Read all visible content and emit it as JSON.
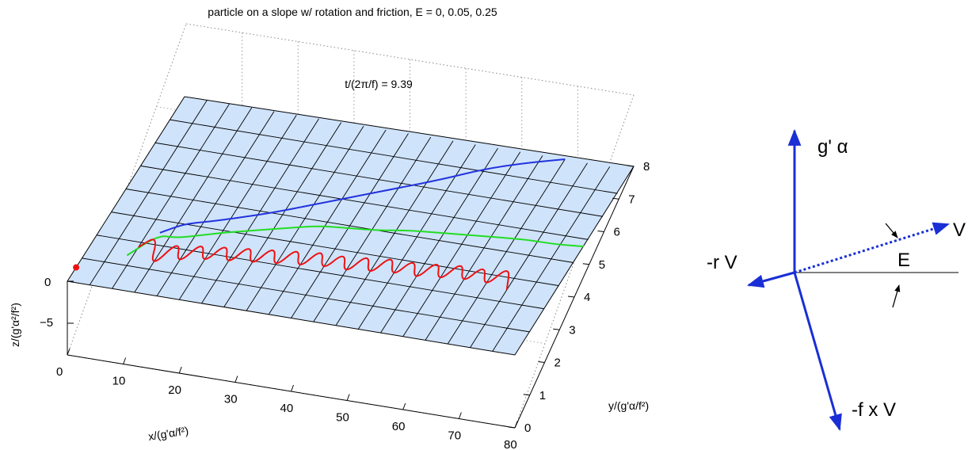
{
  "chart_data": {
    "type": "line",
    "title": "particle on a slope w/ rotation and friction, E = 0, 0.05, 0.25",
    "annotation": "t/(2π/f) = 9.39",
    "xlabel": "x/(g'α/f²)",
    "ylabel": "y/(g'α/f²)",
    "zlabel": "z/(g'α²/f²)",
    "xlim": [
      0,
      80
    ],
    "ylim": [
      0,
      8
    ],
    "zlim": [
      -8,
      0
    ],
    "x_ticks": [
      "0",
      "10",
      "20",
      "30",
      "40",
      "50",
      "60",
      "70",
      "80"
    ],
    "y_ticks": [
      "0",
      "1",
      "2",
      "3",
      "4",
      "5",
      "6",
      "7",
      "8"
    ],
    "z_ticks": [
      "0",
      "−5"
    ],
    "grid": true,
    "surface_color": "#cfe3fb",
    "start_point": {
      "x": 0,
      "y": 0.6
    },
    "series": [
      {
        "color": "#2233dd",
        "x": [
          10,
          13,
          16,
          20,
          26,
          32,
          38,
          44,
          50,
          56,
          62,
          68
        ],
        "y": [
          2.5,
          3.0,
          3.2,
          3.5,
          4.0,
          4.6,
          5.2,
          5.8,
          6.4,
          7.1,
          7.6,
          8.0
        ]
      },
      {
        "color": "#22dd22",
        "x": [
          7,
          10,
          13,
          16,
          20,
          25,
          30,
          35,
          40,
          45,
          50,
          55,
          60,
          65,
          70,
          75,
          80
        ],
        "y": [
          1.4,
          2.4,
          2.4,
          2.6,
          2.9,
          3.2,
          3.5,
          3.8,
          3.9,
          4.0,
          4.2,
          4.3,
          4.4,
          4.5,
          4.6,
          4.6,
          4.7
        ]
      },
      {
        "color": "#ee1111",
        "x": [
          8,
          10,
          12,
          14,
          16,
          18,
          20,
          22,
          24,
          26,
          28,
          30,
          32,
          34,
          36,
          38,
          40,
          42,
          44,
          46,
          48,
          50,
          52,
          54,
          56,
          58,
          60,
          62,
          64,
          66,
          68,
          70,
          72
        ],
        "y": [
          1.8,
          2.4,
          1.0,
          2.4,
          1.3,
          2.5,
          1.5,
          2.6,
          1.6,
          2.7,
          1.7,
          2.8,
          1.8,
          2.9,
          1.9,
          3.0,
          2.0,
          3.0,
          2.0,
          3.1,
          2.1,
          3.2,
          2.2,
          3.2,
          2.2,
          3.3,
          2.3,
          3.4,
          2.4,
          3.4,
          2.4,
          3.5,
          2.5
        ]
      }
    ]
  },
  "diagram": {
    "up_label": "g' α",
    "left_label": "-r V",
    "down_label": "-f x V",
    "v_label": "V",
    "e_label": "E",
    "arrow_color": "#1a2fd6"
  }
}
